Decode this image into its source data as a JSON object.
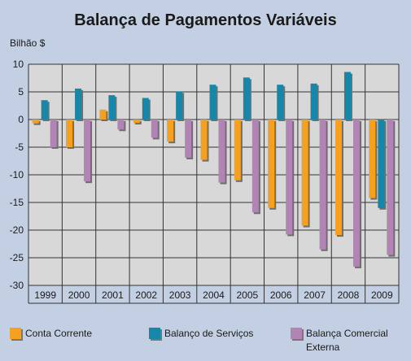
{
  "chart_data": {
    "type": "bar",
    "title": "Balança de Pagamentos Variáveis",
    "ylabel": "Bilhão $",
    "xlabel": "",
    "categories": [
      "1999",
      "2000",
      "2001",
      "2002",
      "2003",
      "2004",
      "2005",
      "2006",
      "2007",
      "2008",
      "2009"
    ],
    "ylim": [
      -30,
      10
    ],
    "yticks": [
      10,
      5,
      0,
      -5,
      -10,
      -15,
      -20,
      -25,
      -30
    ],
    "ytick_labels": [
      "10",
      "5",
      "0",
      "-5",
      "-10",
      "-15",
      "-20",
      "-25",
      "-30"
    ],
    "grid": "horizontal",
    "legend_position": "bottom",
    "series": [
      {
        "name": "Conta Corrente",
        "color": "#f5a01e",
        "values": [
          -0.7,
          -5.0,
          1.8,
          -0.6,
          -4.0,
          -7.3,
          -11.0,
          -16.0,
          -19.2,
          -20.9,
          -14.2
        ]
      },
      {
        "name": "Balanço de Serviços",
        "color": "#1687a8",
        "values": [
          3.5,
          5.6,
          4.4,
          3.9,
          5.1,
          6.3,
          7.6,
          6.3,
          6.5,
          8.6,
          -16.0
        ]
      },
      {
        "name": "Balança Comercial Externa",
        "color": "#b184b5",
        "values": [
          -5.0,
          -11.2,
          -1.8,
          -3.3,
          -6.9,
          -11.4,
          -16.8,
          -20.8,
          -23.5,
          -26.6,
          -24.5
        ]
      }
    ],
    "legend": [
      {
        "name_line1": "Conta Corrente",
        "name_line2": ""
      },
      {
        "name_line1": "Balanço de Serviços",
        "name_line2": ""
      },
      {
        "name_line1": "Balança Comercial",
        "name_line2": "Externa"
      }
    ]
  }
}
